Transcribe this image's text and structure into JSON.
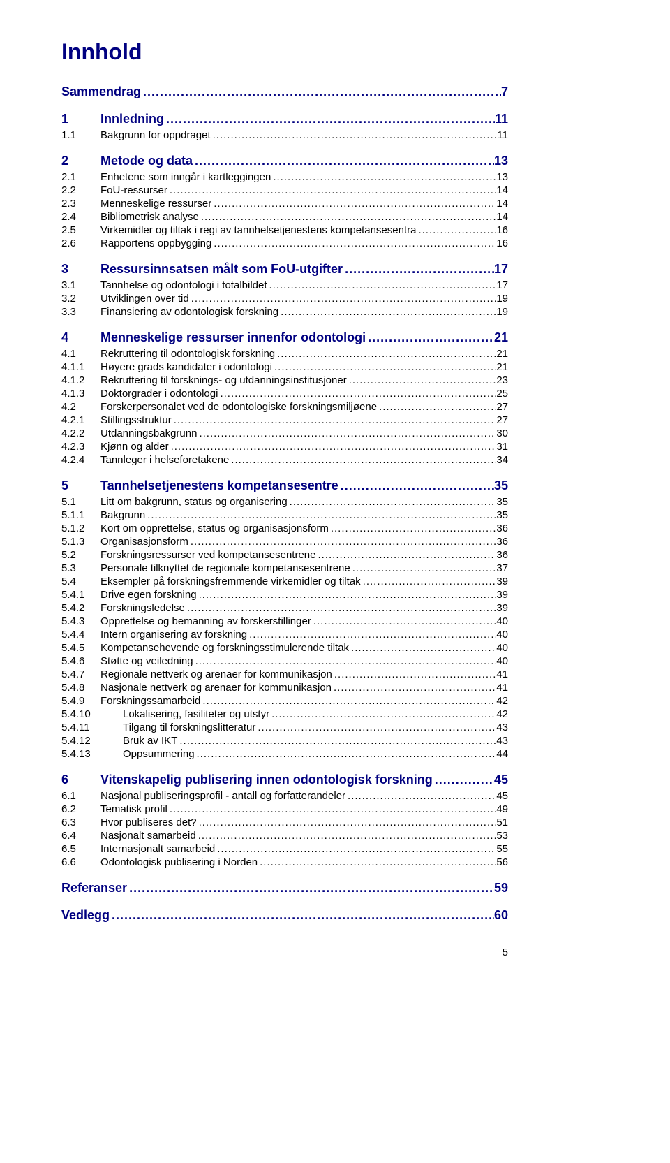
{
  "title": "Innhold",
  "page_number": "5",
  "colors": {
    "heading": "#000080",
    "text": "#000000",
    "background": "#ffffff"
  },
  "fonts": {
    "title_size": 32,
    "bold_size": 18,
    "plain_size": 15
  },
  "toc": [
    {
      "type": "bold-nonum",
      "num": "",
      "label": "Sammendrag",
      "page": "7"
    },
    {
      "type": "bold",
      "num": "1",
      "label": "Innledning",
      "page": "11"
    },
    {
      "type": "plain",
      "num": "1.1",
      "label": "Bakgrunn for oppdraget",
      "page": "11"
    },
    {
      "type": "bold",
      "num": "2",
      "label": "Metode og data",
      "page": "13"
    },
    {
      "type": "plain",
      "num": "2.1",
      "label": "Enhetene som inngår i kartleggingen",
      "page": "13"
    },
    {
      "type": "plain",
      "num": "2.2",
      "label": "FoU-ressurser",
      "page": "14"
    },
    {
      "type": "plain",
      "num": "2.3",
      "label": "Menneskelige ressurser",
      "page": "14"
    },
    {
      "type": "plain",
      "num": "2.4",
      "label": "Bibliometrisk analyse",
      "page": "14"
    },
    {
      "type": "plain",
      "num": "2.5",
      "label": "Virkemidler og tiltak i regi av tannhelsetjenestens kompetansesentra",
      "page": "16"
    },
    {
      "type": "plain",
      "num": "2.6",
      "label": "Rapportens oppbygging",
      "page": "16"
    },
    {
      "type": "bold",
      "num": "3",
      "label": "Ressursinnsatsen målt som FoU-utgifter",
      "page": "17"
    },
    {
      "type": "plain",
      "num": "3.1",
      "label": "Tannhelse og odontologi i totalbildet",
      "page": "17"
    },
    {
      "type": "plain",
      "num": "3.2",
      "label": "Utviklingen over tid",
      "page": "19"
    },
    {
      "type": "plain",
      "num": "3.3",
      "label": "Finansiering av odontologisk forskning",
      "page": "19"
    },
    {
      "type": "bold",
      "num": "4",
      "label": "Menneskelige ressurser innenfor odontologi",
      "page": "21"
    },
    {
      "type": "plain",
      "num": "4.1",
      "label": "Rekruttering til odontologisk forskning",
      "page": "21"
    },
    {
      "type": "plain",
      "num": "4.1.1",
      "label": "Høyere grads kandidater i odontologi",
      "page": "21"
    },
    {
      "type": "plain",
      "num": "4.1.2",
      "label": "Rekruttering til forsknings- og utdanningsinstitusjoner",
      "page": "23"
    },
    {
      "type": "plain",
      "num": "4.1.3",
      "label": "Doktorgrader i odontologi",
      "page": "25"
    },
    {
      "type": "plain",
      "num": "4.2",
      "label": "Forskerpersonalet ved de odontologiske forskningsmiljøene",
      "page": "27"
    },
    {
      "type": "plain",
      "num": "4.2.1",
      "label": "Stillingsstruktur",
      "page": "27"
    },
    {
      "type": "plain",
      "num": "4.2.2",
      "label": "Utdanningsbakgrunn",
      "page": "30"
    },
    {
      "type": "plain",
      "num": "4.2.3",
      "label": "Kjønn og alder",
      "page": "31"
    },
    {
      "type": "plain",
      "num": "4.2.4",
      "label": "Tannleger i helseforetakene",
      "page": "34"
    },
    {
      "type": "bold",
      "num": "5",
      "label": "Tannhelsetjenestens kompetansesentre",
      "page": "35"
    },
    {
      "type": "plain",
      "num": "5.1",
      "label": "Litt om bakgrunn, status og organisering",
      "page": "35"
    },
    {
      "type": "plain",
      "num": "5.1.1",
      "label": "Bakgrunn",
      "page": "35"
    },
    {
      "type": "plain",
      "num": "5.1.2",
      "label": "Kort om opprettelse, status og organisasjonsform",
      "page": "36"
    },
    {
      "type": "plain",
      "num": "5.1.3",
      "label": "Organisasjonsform",
      "page": "36"
    },
    {
      "type": "plain",
      "num": "5.2",
      "label": "Forskningsressurser ved kompetansesentrene",
      "page": "36"
    },
    {
      "type": "plain",
      "num": "5.3",
      "label": "Personale tilknyttet de regionale kompetansesentrene",
      "page": "37"
    },
    {
      "type": "plain",
      "num": "5.4",
      "label": "Eksempler på forskningsfremmende virkemidler og tiltak",
      "page": "39"
    },
    {
      "type": "plain",
      "num": "5.4.1",
      "label": "Drive egen forskning",
      "page": "39"
    },
    {
      "type": "plain",
      "num": "5.4.2",
      "label": "Forskningsledelse",
      "page": "39"
    },
    {
      "type": "plain",
      "num": "5.4.3",
      "label": "Opprettelse og bemanning av forskerstillinger",
      "page": "40"
    },
    {
      "type": "plain",
      "num": "5.4.4",
      "label": "Intern organisering av forskning",
      "page": "40"
    },
    {
      "type": "plain",
      "num": "5.4.5",
      "label": "Kompetansehevende og forskningsstimulerende tiltak",
      "page": "40"
    },
    {
      "type": "plain",
      "num": "5.4.6",
      "label": "Støtte og veiledning",
      "page": "40"
    },
    {
      "type": "plain",
      "num": "5.4.7",
      "label": "Regionale nettverk og arenaer for kommunikasjon",
      "page": "41"
    },
    {
      "type": "plain",
      "num": "5.4.8",
      "label": "Nasjonale nettverk og arenaer for kommunikasjon",
      "page": "41"
    },
    {
      "type": "plain",
      "num": "5.4.9",
      "label": "Forskningssamarbeid",
      "page": "42"
    },
    {
      "type": "indent",
      "num": "5.4.10",
      "label": "Lokalisering, fasiliteter og utstyr",
      "page": "42"
    },
    {
      "type": "indent",
      "num": "5.4.11",
      "label": "Tilgang til forskningslitteratur",
      "page": "43"
    },
    {
      "type": "indent",
      "num": "5.4.12",
      "label": "Bruk av IKT",
      "page": "43"
    },
    {
      "type": "indent",
      "num": "5.4.13",
      "label": "Oppsummering",
      "page": "44"
    },
    {
      "type": "bold",
      "num": "6",
      "label": "Vitenskapelig publisering innen odontologisk forskning",
      "page": "45"
    },
    {
      "type": "plain",
      "num": "6.1",
      "label": "Nasjonal publiseringsprofil - antall og forfatterandeler",
      "page": "45"
    },
    {
      "type": "plain",
      "num": "6.2",
      "label": "Tematisk profil",
      "page": "49"
    },
    {
      "type": "plain",
      "num": "6.3",
      "label": "Hvor publiseres det?",
      "page": "51"
    },
    {
      "type": "plain",
      "num": "6.4",
      "label": "Nasjonalt samarbeid",
      "page": "53"
    },
    {
      "type": "plain",
      "num": "6.5",
      "label": "Internasjonalt samarbeid",
      "page": "55"
    },
    {
      "type": "plain",
      "num": "6.6",
      "label": "Odontologisk publisering i Norden",
      "page": "56"
    },
    {
      "type": "bold-nonum",
      "num": "",
      "label": "Referanser",
      "page": "59"
    },
    {
      "type": "bold-nonum",
      "num": "",
      "label": "Vedlegg",
      "page": "60"
    }
  ]
}
